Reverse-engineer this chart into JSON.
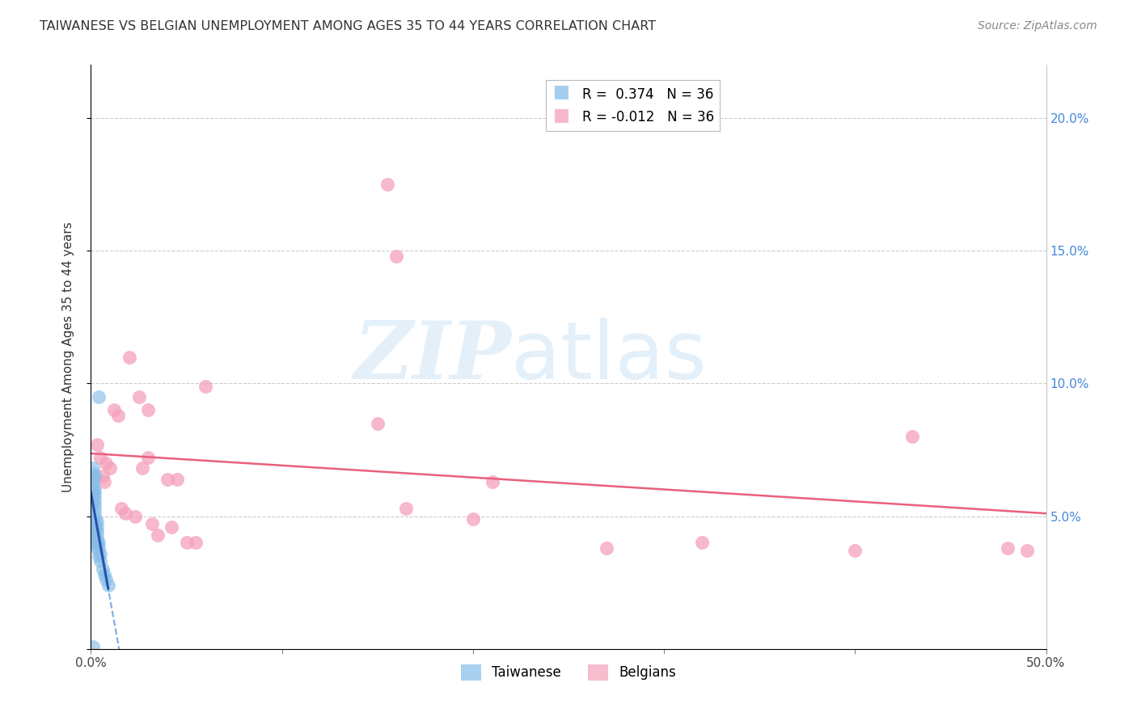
{
  "title": "TAIWANESE VS BELGIAN UNEMPLOYMENT AMONG AGES 35 TO 44 YEARS CORRELATION CHART",
  "source": "Source: ZipAtlas.com",
  "ylabel": "Unemployment Among Ages 35 to 44 years",
  "xlim": [
    0.0,
    0.5
  ],
  "ylim": [
    0.0,
    0.22
  ],
  "xticks": [
    0.0,
    0.1,
    0.2,
    0.3,
    0.4,
    0.5
  ],
  "xticklabels": [
    "0.0%",
    "",
    "",
    "",
    "",
    "50.0%"
  ],
  "yticks_right": [
    0.0,
    0.05,
    0.1,
    0.15,
    0.2
  ],
  "yticklabels_right": [
    "",
    "5.0%",
    "10.0%",
    "15.0%",
    "20.0%"
  ],
  "taiwanese_x": [
    0.001,
    0.001,
    0.001,
    0.001,
    0.001,
    0.001,
    0.001,
    0.001,
    0.002,
    0.002,
    0.002,
    0.002,
    0.002,
    0.002,
    0.002,
    0.002,
    0.002,
    0.002,
    0.002,
    0.002,
    0.003,
    0.003,
    0.003,
    0.003,
    0.003,
    0.003,
    0.004,
    0.004,
    0.004,
    0.004,
    0.005,
    0.005,
    0.006,
    0.007,
    0.008,
    0.009
  ],
  "taiwanese_y": [
    0.001,
    0.055,
    0.058,
    0.06,
    0.062,
    0.064,
    0.066,
    0.068,
    0.04,
    0.042,
    0.044,
    0.046,
    0.048,
    0.05,
    0.052,
    0.054,
    0.056,
    0.058,
    0.06,
    0.065,
    0.038,
    0.04,
    0.042,
    0.044,
    0.046,
    0.048,
    0.035,
    0.038,
    0.04,
    0.095,
    0.033,
    0.036,
    0.03,
    0.028,
    0.026,
    0.024
  ],
  "belgian_x": [
    0.003,
    0.005,
    0.006,
    0.007,
    0.008,
    0.01,
    0.012,
    0.014,
    0.016,
    0.018,
    0.02,
    0.023,
    0.025,
    0.027,
    0.03,
    0.03,
    0.032,
    0.035,
    0.04,
    0.042,
    0.045,
    0.05,
    0.055,
    0.06,
    0.15,
    0.155,
    0.16,
    0.165,
    0.2,
    0.21,
    0.27,
    0.32,
    0.4,
    0.43,
    0.48,
    0.49
  ],
  "belgian_y": [
    0.077,
    0.072,
    0.065,
    0.063,
    0.07,
    0.068,
    0.09,
    0.088,
    0.053,
    0.051,
    0.11,
    0.05,
    0.095,
    0.068,
    0.072,
    0.09,
    0.047,
    0.043,
    0.064,
    0.046,
    0.064,
    0.04,
    0.04,
    0.099,
    0.085,
    0.175,
    0.148,
    0.053,
    0.049,
    0.063,
    0.038,
    0.04,
    0.037,
    0.08,
    0.038,
    0.037
  ],
  "tw_R": 0.374,
  "tw_N": 36,
  "be_R": -0.012,
  "be_N": 36,
  "taiwanese_color": "#85bce8",
  "belgian_color": "#f5a0ba",
  "tw_trend_solid_color": "#2255aa",
  "tw_trend_dash_color": "#5599dd",
  "be_trend_color": "#e8607a",
  "background_color": "#ffffff",
  "grid_color": "#cccccc"
}
